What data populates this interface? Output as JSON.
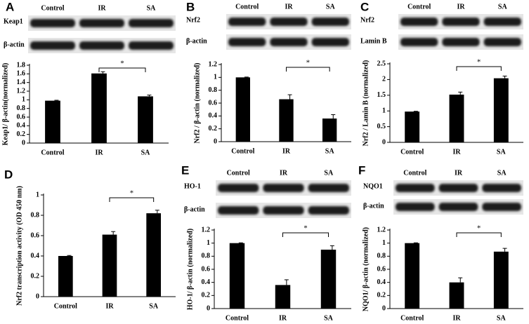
{
  "chart_data": [
    {
      "type": "bar",
      "panel": "A",
      "ylabel": "Keap1/ β-actin(normalized)",
      "blot": {
        "columns": [
          "Control",
          "IR",
          "SA"
        ],
        "rows": [
          "Keap1",
          "β-actin"
        ]
      },
      "categories": [
        "Control",
        "IR",
        "SA"
      ],
      "values": [
        0.98,
        1.61,
        1.08
      ],
      "errors": [
        0.01,
        0.04,
        0.03
      ],
      "color": "#000000",
      "ylim": [
        0,
        1.8
      ],
      "yticks": [
        0,
        0.2,
        0.4,
        0.6,
        0.8,
        1,
        1.2,
        1.4,
        1.6,
        1.8
      ],
      "annotations": [
        {
          "text": "*",
          "between": [
            "IR",
            "SA"
          ]
        }
      ]
    },
    {
      "type": "bar",
      "panel": "B",
      "ylabel": "Nrf2 / β-actin (normalized)",
      "blot": {
        "columns": [
          "Control",
          "IR",
          "SA"
        ],
        "rows": [
          "Nrf2",
          "β-actin"
        ]
      },
      "categories": [
        "Control",
        "IR",
        "SA"
      ],
      "values": [
        1.0,
        0.66,
        0.36
      ],
      "errors": [
        0.005,
        0.07,
        0.06
      ],
      "color": "#000000",
      "ylim": [
        0,
        1.2
      ],
      "yticks": [
        0,
        0.2,
        0.4,
        0.6,
        0.8,
        1,
        1.2
      ],
      "annotations": [
        {
          "text": "*",
          "between": [
            "IR",
            "SA"
          ]
        }
      ]
    },
    {
      "type": "bar",
      "panel": "C",
      "ylabel": "Nrf2 / Lamin B (normalized)",
      "blot": {
        "columns": [
          "Control",
          "IR",
          "SA"
        ],
        "rows": [
          "Nrf2",
          "Lamin B"
        ]
      },
      "categories": [
        "Control",
        "IR",
        "SA"
      ],
      "values": [
        0.98,
        1.52,
        2.04
      ],
      "errors": [
        0.01,
        0.08,
        0.07
      ],
      "color": "#000000",
      "ylim": [
        0,
        2.5
      ],
      "yticks": [
        0,
        0.5,
        1,
        1.5,
        2,
        2.5
      ],
      "annotations": [
        {
          "text": "*",
          "between": [
            "IR",
            "SA"
          ]
        }
      ]
    },
    {
      "type": "bar",
      "panel": "D",
      "ylabel": "Nrf2 transcription activity (OD 450 nm)",
      "categories": [
        "Control",
        "IR",
        "SA"
      ],
      "values": [
        0.4,
        0.61,
        0.82
      ],
      "errors": [
        0.005,
        0.03,
        0.03
      ],
      "color": "#000000",
      "ylim": [
        0,
        1
      ],
      "yticks": [
        0,
        0.2,
        0.4,
        0.6,
        0.8,
        1
      ],
      "annotations": [
        {
          "text": "*",
          "between": [
            "IR",
            "SA"
          ]
        }
      ]
    },
    {
      "type": "bar",
      "panel": "E",
      "ylabel": "HO-1/ β-actin (normalized)",
      "blot": {
        "columns": [
          "Control",
          "IR",
          "SA"
        ],
        "rows": [
          "HO-1",
          "β-actin"
        ]
      },
      "categories": [
        "Control",
        "IR",
        "SA"
      ],
      "values": [
        1.0,
        0.36,
        0.9
      ],
      "errors": [
        0.005,
        0.08,
        0.06
      ],
      "color": "#000000",
      "ylim": [
        0,
        1.2
      ],
      "yticks": [
        0,
        0.2,
        0.4,
        0.6,
        0.8,
        1,
        1.2
      ],
      "annotations": [
        {
          "text": "*",
          "between": [
            "IR",
            "SA"
          ]
        }
      ]
    },
    {
      "type": "bar",
      "panel": "F",
      "ylabel": "NQO1/ β-actin (normalized)",
      "blot": {
        "columns": [
          "Control",
          "IR",
          "SA"
        ],
        "rows": [
          "NQO1",
          "β-actin"
        ]
      },
      "categories": [
        "Control",
        "IR",
        "SA"
      ],
      "values": [
        1.0,
        0.4,
        0.87
      ],
      "errors": [
        0.005,
        0.07,
        0.05
      ],
      "color": "#000000",
      "ylim": [
        0,
        1.2
      ],
      "yticks": [
        0,
        0.2,
        0.4,
        0.6,
        0.8,
        1,
        1.2
      ],
      "annotations": [
        {
          "text": "*",
          "between": [
            "IR",
            "SA"
          ]
        }
      ]
    }
  ]
}
